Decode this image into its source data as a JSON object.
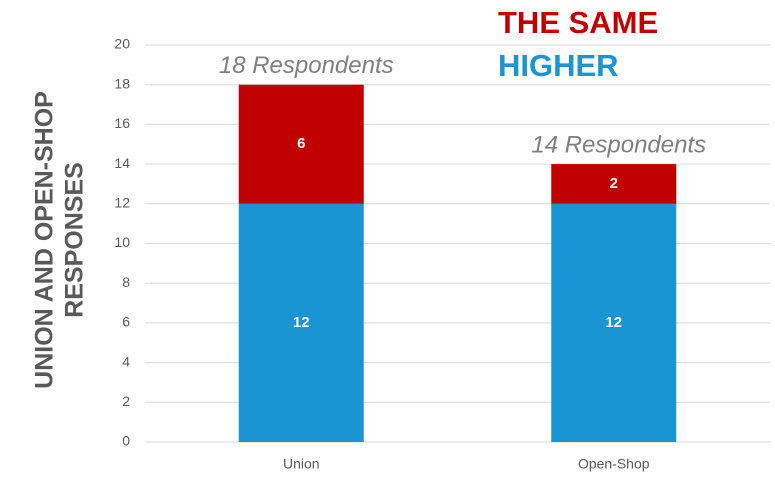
{
  "chart_data": {
    "type": "stacked_bar",
    "y_label": [
      "UNION AND OPEN-SHOP",
      "RESPONSES"
    ],
    "categories": [
      "Union",
      "Open-Shop"
    ],
    "series": [
      {
        "name": "HIGHER",
        "color": "#1a94d2",
        "values": [
          12,
          12
        ]
      },
      {
        "name": "THE SAME",
        "color": "#c00000",
        "values": [
          6,
          2
        ]
      }
    ],
    "annotations": [
      "18 Respondents",
      "14 Respondents"
    ],
    "ylim": [
      0,
      20
    ],
    "yticks": [
      0,
      2,
      4,
      6,
      8,
      10,
      12,
      14,
      16,
      18,
      20
    ],
    "grid": true
  }
}
